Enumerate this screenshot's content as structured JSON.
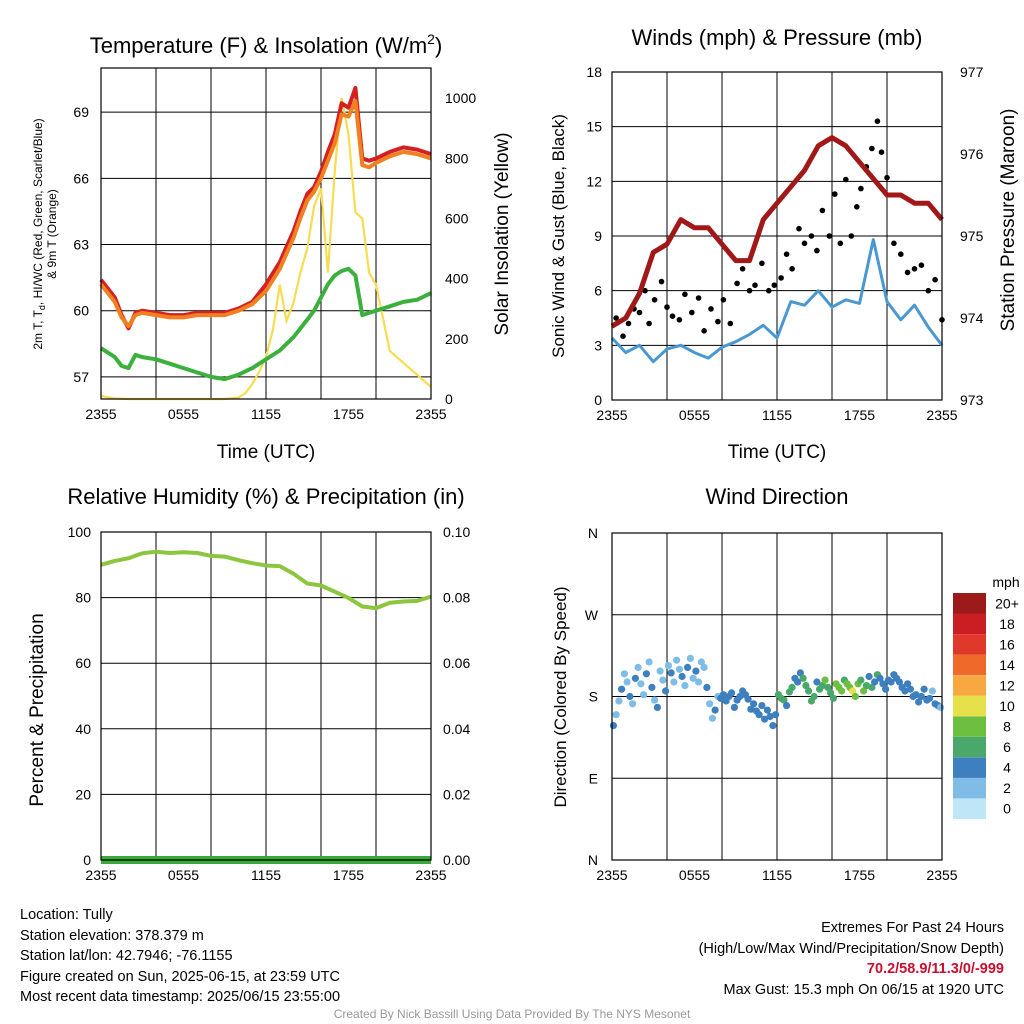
{
  "panels": {
    "temp": {
      "title": "Temperature (F) & Insolation (W/m",
      "title_sup": "2",
      "title_end": ")",
      "xlabel": "Time (UTC)",
      "ylabel_left_lines": [
        "2m T, T",
        "d",
        ", HI/WC (Red, Green, Scarlet/Blue)",
        "& 9m T (Orange)"
      ],
      "ylabel_right": "Solar Insolation (Yellow)",
      "xticks": [
        "2355",
        "0555",
        "1155",
        "1755",
        "2355"
      ],
      "yticks_left": [
        "57",
        "60",
        "63",
        "66",
        "69"
      ],
      "yticks_right": [
        "0",
        "200",
        "400",
        "600",
        "800",
        "1000"
      ]
    },
    "wind": {
      "title": "Winds (mph) & Pressure (mb)",
      "xlabel": "Time (UTC)",
      "ylabel_left": "Sonic Wind & Gust (Blue, Black)",
      "ylabel_right": "Station Pressure (Maroon)",
      "xticks": [
        "2355",
        "0555",
        "1155",
        "1755",
        "2355"
      ],
      "yticks_left": [
        "0",
        "3",
        "6",
        "9",
        "12",
        "15",
        "18"
      ],
      "yticks_right": [
        "973",
        "974",
        "975",
        "976",
        "977"
      ]
    },
    "rh": {
      "title": "Relative Humidity (%) & Precipitation (in)",
      "ylabel_left": "Percent & Precipitation",
      "xticks": [
        "2355",
        "0555",
        "1155",
        "1755",
        "2355"
      ],
      "yticks_left": [
        "0",
        "20",
        "40",
        "60",
        "80",
        "100"
      ],
      "yticks_right": [
        "0.00",
        "0.02",
        "0.04",
        "0.06",
        "0.08",
        "0.10"
      ]
    },
    "dir": {
      "title": "Wind Direction",
      "ylabel_left": "Direction (Colored By Speed)",
      "xticks": [
        "2355",
        "0555",
        "1155",
        "1755",
        "2355"
      ],
      "yticks_left": [
        "N",
        "E",
        "S",
        "W",
        "N"
      ],
      "colorbar_title": "mph",
      "colorbar_labels": [
        "0",
        "2",
        "4",
        "6",
        "8",
        "10",
        "12",
        "14",
        "16",
        "18",
        "20+"
      ],
      "colorbar_colors": [
        "#bfe6f7",
        "#7fbde6",
        "#3d7fbf",
        "#4aa86b",
        "#6cbf3f",
        "#e6e04a",
        "#f7a840",
        "#ef6a2a",
        "#e0382a",
        "#c81e24",
        "#9b1a1a"
      ]
    }
  },
  "colors": {
    "temp_red": "#d42020",
    "temp_orange": "#f08020",
    "dewpoint_green": "#3cb03c",
    "insolation_yellow": "#f8dc50",
    "wind_blue": "#4a98d0",
    "gust_black": "#000000",
    "pressure_maroon": "#a01818",
    "rh_green": "#8cc63f",
    "precip_green": "#3aa83a"
  },
  "chart_data": [
    {
      "type": "line",
      "panel": "temp",
      "x_hours_since_2355": [
        0,
        1,
        1.5,
        2,
        2.5,
        3,
        4,
        5,
        6,
        7,
        8,
        9,
        10,
        11,
        12,
        13,
        13.5,
        14,
        14.5,
        15,
        15.5,
        16,
        16.5,
        17,
        17.5,
        18,
        18.5,
        19,
        19.5,
        20,
        21,
        22,
        23,
        24
      ],
      "series": [
        {
          "name": "2m T (Red)",
          "axis": "left",
          "values": [
            61.4,
            60.6,
            59.8,
            59.2,
            59.9,
            60.0,
            59.9,
            59.8,
            59.8,
            59.9,
            59.9,
            59.9,
            60.1,
            60.4,
            61.2,
            62.2,
            62.9,
            63.6,
            64.5,
            65.3,
            65.6,
            66.3,
            67.2,
            68.0,
            69.4,
            69.2,
            70.1,
            66.9,
            66.8,
            66.9,
            67.2,
            67.4,
            67.3,
            67.1
          ]
        },
        {
          "name": "9m T (Orange)",
          "axis": "left",
          "values": [
            61.2,
            60.4,
            59.7,
            59.3,
            59.8,
            59.9,
            59.8,
            59.7,
            59.7,
            59.8,
            59.8,
            59.8,
            60.0,
            60.3,
            60.9,
            61.9,
            62.6,
            63.3,
            64.2,
            65.0,
            65.4,
            66.0,
            66.8,
            67.6,
            68.9,
            68.8,
            69.5,
            66.6,
            66.5,
            66.7,
            67.0,
            67.2,
            67.1,
            66.9
          ]
        },
        {
          "name": "2m Td (Green)",
          "axis": "left",
          "values": [
            58.3,
            57.9,
            57.5,
            57.4,
            58.0,
            57.9,
            57.8,
            57.6,
            57.4,
            57.2,
            57.0,
            56.9,
            57.1,
            57.4,
            57.8,
            58.2,
            58.5,
            58.8,
            59.2,
            59.6,
            60.0,
            60.6,
            61.2,
            61.6,
            61.8,
            61.9,
            61.6,
            59.8,
            59.9,
            60.0,
            60.2,
            60.4,
            60.5,
            60.8
          ]
        }
      ],
      "ylim": [
        56,
        71
      ]
    },
    {
      "type": "line",
      "panel": "temp",
      "axis": "right",
      "name": "Solar Insolation (Yellow)",
      "x_hours_since_2355": [
        0,
        1,
        2,
        3,
        4,
        5,
        6,
        7,
        8,
        9,
        10,
        10.5,
        11,
        11.5,
        12,
        12.5,
        13,
        13.5,
        14,
        14.5,
        15,
        15.5,
        16,
        16.5,
        17,
        17.5,
        18,
        18.5,
        19,
        19.5,
        20,
        21,
        22,
        23,
        24
      ],
      "values": [
        10,
        2,
        0,
        0,
        0,
        0,
        0,
        0,
        0,
        0,
        5,
        20,
        50,
        90,
        140,
        230,
        380,
        260,
        320,
        420,
        500,
        640,
        700,
        420,
        760,
        1000,
        880,
        620,
        600,
        420,
        380,
        160,
        120,
        80,
        40
      ],
      "ylim": [
        0,
        1100
      ]
    },
    {
      "type": "line",
      "panel": "wind",
      "x_hours_since_2355": [
        0,
        1,
        2,
        3,
        4,
        5,
        6,
        7,
        8,
        9,
        10,
        11,
        12,
        13,
        14,
        15,
        16,
        17,
        18,
        19,
        20,
        21,
        22,
        23,
        24
      ],
      "series": [
        {
          "name": "Sonic Wind (Blue)",
          "axis": "left",
          "values": [
            3.4,
            2.6,
            3.0,
            2.1,
            2.8,
            3.0,
            2.6,
            2.3,
            2.9,
            3.2,
            3.6,
            4.1,
            3.4,
            5.4,
            5.2,
            6.0,
            5.1,
            5.5,
            5.3,
            8.8,
            5.4,
            4.4,
            5.2,
            4.0,
            3.0
          ]
        },
        {
          "name": "Station Pressure (Maroon)",
          "axis": "right",
          "values": [
            973.9,
            974.0,
            974.3,
            974.8,
            974.9,
            975.2,
            975.1,
            975.1,
            974.9,
            974.7,
            974.7,
            975.2,
            975.4,
            975.6,
            975.8,
            976.1,
            976.2,
            976.1,
            975.9,
            975.7,
            975.5,
            975.5,
            975.4,
            975.4,
            975.2
          ]
        }
      ],
      "ylim_left": [
        0,
        18
      ],
      "ylim_right": [
        973,
        977
      ]
    },
    {
      "type": "scatter",
      "panel": "wind",
      "name": "Gust (Black)",
      "x_hours_since_2355": [
        0.3,
        0.8,
        1.2,
        1.6,
        2.0,
        2.4,
        2.7,
        3.1,
        3.6,
        4.0,
        4.4,
        4.9,
        5.3,
        5.8,
        6.3,
        6.7,
        7.2,
        7.7,
        8.1,
        8.6,
        9.1,
        9.5,
        10.0,
        10.4,
        10.9,
        11.4,
        11.8,
        12.3,
        12.7,
        13.1,
        13.6,
        14.0,
        14.5,
        14.9,
        15.3,
        15.8,
        16.2,
        16.6,
        17.0,
        17.4,
        17.8,
        18.1,
        18.5,
        18.9,
        19.3,
        19.6,
        20.0,
        20.5,
        21.0,
        21.5,
        22.0,
        22.5,
        23.0,
        23.5,
        24.0
      ],
      "values": [
        4.5,
        3.5,
        4.2,
        5.0,
        4.8,
        6.0,
        4.2,
        5.5,
        6.5,
        5.1,
        4.6,
        4.4,
        5.8,
        4.8,
        5.6,
        3.8,
        5.0,
        4.3,
        5.5,
        4.2,
        6.4,
        7.2,
        6.0,
        6.3,
        7.5,
        6.0,
        6.3,
        6.7,
        8.0,
        7.2,
        9.4,
        8.6,
        9.0,
        8.2,
        10.4,
        9.0,
        11.3,
        8.6,
        12.1,
        9.0,
        10.6,
        11.6,
        12.8,
        13.8,
        15.3,
        13.6,
        12.2,
        8.6,
        8.0,
        7.0,
        7.2,
        7.4,
        6.0,
        6.6,
        4.4
      ],
      "ylim": [
        0,
        18
      ]
    },
    {
      "type": "line",
      "panel": "rh",
      "x_hours_since_2355": [
        0,
        1,
        2,
        3,
        4,
        5,
        6,
        7,
        8,
        9,
        10,
        11,
        12,
        13,
        14,
        15,
        16,
        17,
        18,
        19,
        20,
        21,
        22,
        23,
        24
      ],
      "series": [
        {
          "name": "Relative Humidity",
          "axis": "left",
          "values": [
            90.0,
            91.2,
            92.0,
            93.5,
            94.0,
            93.6,
            93.8,
            93.6,
            92.7,
            92.5,
            91.4,
            90.5,
            89.8,
            89.6,
            87.3,
            84.3,
            83.7,
            81.8,
            79.9,
            77.3,
            76.8,
            78.4,
            78.8,
            79.0,
            80.3
          ]
        },
        {
          "name": "Precipitation",
          "axis": "right",
          "values": [
            0,
            0,
            0,
            0,
            0,
            0,
            0,
            0,
            0,
            0,
            0,
            0,
            0,
            0,
            0,
            0,
            0,
            0,
            0,
            0,
            0,
            0,
            0,
            0,
            0
          ]
        }
      ],
      "ylim_left": [
        0,
        100
      ],
      "ylim_right": [
        0,
        0.1
      ]
    },
    {
      "type": "scatter",
      "panel": "dir",
      "name": "Wind Direction (Colored By Speed)",
      "x_hours_since_2355": [
        0.1,
        0.3,
        0.5,
        0.7,
        0.9,
        1.1,
        1.3,
        1.5,
        1.7,
        1.9,
        2.1,
        2.3,
        2.5,
        2.7,
        2.9,
        3.1,
        3.3,
        3.5,
        3.7,
        3.9,
        4.1,
        4.3,
        4.5,
        4.7,
        4.9,
        5.1,
        5.3,
        5.5,
        5.7,
        5.9,
        6.1,
        6.3,
        6.5,
        6.7,
        6.9,
        7.1,
        7.3,
        7.5,
        7.7,
        7.9,
        8.1,
        8.3,
        8.5,
        8.7,
        8.9,
        9.1,
        9.3,
        9.5,
        9.7,
        9.9,
        10.1,
        10.3,
        10.5,
        10.7,
        10.9,
        11.1,
        11.3,
        11.5,
        11.7,
        11.9,
        12.1,
        12.3,
        12.5,
        12.7,
        12.9,
        13.1,
        13.3,
        13.5,
        13.7,
        13.9,
        14.1,
        14.3,
        14.5,
        14.7,
        14.9,
        15.1,
        15.3,
        15.5,
        15.7,
        15.9,
        16.1,
        16.3,
        16.5,
        16.7,
        16.9,
        17.1,
        17.3,
        17.5,
        17.7,
        17.9,
        18.1,
        18.3,
        18.5,
        18.7,
        18.9,
        19.1,
        19.3,
        19.5,
        19.7,
        19.9,
        20.1,
        20.3,
        20.5,
        20.7,
        20.9,
        21.1,
        21.3,
        21.5,
        21.7,
        21.9,
        22.1,
        22.3,
        22.5,
        22.7,
        22.9,
        23.1,
        23.3,
        23.5,
        23.7,
        23.9
      ],
      "values": [
        148,
        160,
        175,
        188,
        205,
        196,
        180,
        172,
        200,
        212,
        194,
        182,
        205,
        218,
        190,
        176,
        168,
        208,
        198,
        186,
        214,
        206,
        196,
        220,
        210,
        202,
        192,
        212,
        222,
        200,
        208,
        196,
        218,
        212,
        190,
        172,
        156,
        165,
        180,
        178,
        182,
        175,
        180,
        184,
        168,
        176,
        180,
        186,
        182,
        177,
        166,
        172,
        164,
        160,
        170,
        155,
        165,
        158,
        148,
        160,
        182,
        178,
        176,
        170,
        185,
        190,
        200,
        196,
        206,
        200,
        192,
        186,
        175,
        180,
        196,
        188,
        192,
        198,
        190,
        184,
        178,
        194,
        190,
        186,
        198,
        194,
        190,
        186,
        180,
        194,
        198,
        186,
        192,
        202,
        190,
        196,
        204,
        200,
        194,
        188,
        198,
        196,
        204,
        200,
        196,
        190,
        186,
        194,
        188,
        180,
        182,
        174,
        180,
        188,
        176,
        178,
        186,
        172,
        170,
        168
      ],
      "speeds": [
        3,
        2,
        2,
        3,
        2,
        1,
        3,
        2,
        3,
        2,
        1,
        2,
        3,
        2,
        3,
        2,
        3,
        2,
        1,
        3,
        2,
        3,
        2,
        1,
        2,
        3,
        2,
        3,
        2,
        1,
        3,
        2,
        2,
        1,
        3,
        2,
        2,
        3,
        2,
        3,
        4,
        3,
        4,
        3,
        3,
        4,
        3,
        4,
        3,
        3,
        3,
        4,
        3,
        4,
        3,
        3,
        4,
        3,
        4,
        3,
        5,
        6,
        5,
        4,
        5,
        6,
        4,
        3,
        4,
        5,
        6,
        5,
        6,
        5,
        4,
        5,
        6,
        7,
        6,
        5,
        6,
        7,
        8,
        7,
        6,
        7,
        8,
        9,
        8,
        7,
        6,
        7,
        5,
        4,
        5,
        4,
        5,
        4,
        4,
        3,
        4,
        3,
        4,
        3,
        3,
        4,
        3,
        4,
        3,
        3,
        4,
        3,
        3,
        4,
        3,
        3,
        2,
        3,
        3,
        2
      ],
      "ylim": [
        0,
        360
      ],
      "yticks_degrees": [
        0,
        90,
        180,
        270,
        360
      ]
    }
  ],
  "info": {
    "location": "Location: Tully",
    "elevation": "Station elevation: 378.379 m",
    "latlon": "Station lat/lon: 42.7946; -76.1155",
    "created": "Figure created on Sun, 2025-06-15, at 23:59 UTC",
    "recent": "Most recent data timestamp: 2025/06/15 23:55:00"
  },
  "extremes": {
    "title": "Extremes For Past 24 Hours",
    "subtitle": "(High/Low/Max Wind/Precipitation/Snow Depth)",
    "values": "70.2/58.9/11.3/0/-999",
    "max_gust": "Max Gust: 15.3 mph On 06/15 at 1920 UTC"
  },
  "credit": "Created By Nick Bassill Using Data Provided By The NYS Mesonet"
}
